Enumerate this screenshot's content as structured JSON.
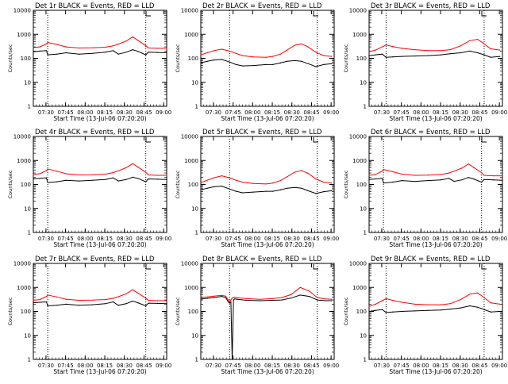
{
  "figure": {
    "background": "#ffffff",
    "colors": {
      "events": "#000000",
      "lld": "#ff0000"
    },
    "y_label": "Counts/sec",
    "x_label": "Start Time (13-Jul-06 07:20:20)",
    "legend_glyph": "L"
  },
  "chart_data": [
    {
      "type": "line",
      "title": "Det 1r BLACK = Events, RED = LLD",
      "xlabel": "Start Time (13-Jul-06 07:20:20)",
      "ylabel": "Counts/sec",
      "y_scale": "log",
      "ylim": [
        1,
        10000
      ],
      "y_ticks": [
        1,
        10,
        100,
        1000,
        10000
      ],
      "x_ticks": [
        "07:30",
        "07:45",
        "08:00",
        "08:15",
        "08:30",
        "08:45",
        "09:00"
      ],
      "xlim_min": [
        0,
        102
      ],
      "vlines_min": [
        11,
        86
      ],
      "grid": false,
      "x": [
        0,
        5,
        10,
        11,
        18,
        25,
        35,
        45,
        55,
        61,
        65,
        71,
        76,
        80,
        86,
        88,
        95,
        102
      ],
      "series": [
        {
          "name": "Events",
          "values": [
            190,
            200,
            210,
            140,
            150,
            170,
            150,
            160,
            180,
            210,
            150,
            180,
            230,
            195,
            140,
            180,
            175,
            170
          ]
        },
        {
          "name": "LLD",
          "values": [
            280,
            300,
            400,
            460,
            380,
            300,
            270,
            275,
            290,
            330,
            390,
            520,
            780,
            560,
            340,
            270,
            260,
            260
          ]
        }
      ]
    },
    {
      "type": "line",
      "title": "Det 2r BLACK = Events, RED = LLD",
      "xlabel": "Start Time (13-Jul-06 07:20:20)",
      "ylabel": "Counts/sec",
      "y_scale": "log",
      "ylim": [
        1,
        10000
      ],
      "y_ticks": [
        1,
        10,
        100,
        1000,
        10000
      ],
      "x_ticks": [
        "07:30",
        "07:45",
        "08:00",
        "08:15",
        "08:30",
        "08:45",
        "09:00"
      ],
      "xlim_min": [
        0,
        102
      ],
      "vlines_min": [
        22,
        89
      ],
      "grid": false,
      "x": [
        0,
        5,
        10,
        16,
        22,
        27,
        32,
        40,
        50,
        55,
        61,
        66,
        72,
        77,
        82,
        88,
        94,
        100
      ],
      "series": [
        {
          "name": "Events",
          "values": [
            65,
            75,
            85,
            90,
            70,
            55,
            48,
            50,
            55,
            55,
            65,
            75,
            80,
            75,
            60,
            45,
            55,
            60
          ]
        },
        {
          "name": "LLD",
          "values": [
            140,
            170,
            210,
            240,
            200,
            160,
            130,
            115,
            110,
            120,
            150,
            220,
            350,
            400,
            300,
            180,
            130,
            120
          ]
        }
      ]
    },
    {
      "type": "line",
      "title": "Det 3r BLACK = Events, RED = LLD",
      "xlabel": "Start Time (13-Jul-06 07:20:20)",
      "ylabel": "Counts/sec",
      "y_scale": "log",
      "ylim": [
        1,
        10000
      ],
      "y_ticks": [
        1,
        10,
        100,
        1000,
        10000
      ],
      "x_ticks": [
        "07:30",
        "07:45",
        "08:00",
        "08:15",
        "08:30",
        "08:45",
        "09:00"
      ],
      "xlim_min": [
        0,
        102
      ],
      "vlines_min": [
        13,
        88
      ],
      "grid": false,
      "x": [
        0,
        5,
        10,
        13,
        18,
        25,
        35,
        45,
        55,
        62,
        70,
        77,
        83,
        88,
        93,
        100
      ],
      "series": [
        {
          "name": "Events",
          "values": [
            130,
            140,
            150,
            110,
            115,
            120,
            125,
            130,
            140,
            155,
            170,
            200,
            170,
            140,
            110,
            120
          ]
        },
        {
          "name": "LLD",
          "values": [
            190,
            220,
            300,
            360,
            310,
            260,
            230,
            210,
            210,
            230,
            330,
            540,
            620,
            400,
            250,
            220
          ]
        }
      ]
    },
    {
      "type": "line",
      "title": "Det 4r BLACK = Events, RED = LLD",
      "xlabel": "Start Time (13-Jul-06 07:20:20)",
      "ylabel": "Counts/sec",
      "y_scale": "log",
      "ylim": [
        1,
        10000
      ],
      "y_ticks": [
        1,
        10,
        100,
        1000,
        10000
      ],
      "x_ticks": [
        "07:30",
        "07:45",
        "08:00",
        "08:15",
        "08:30",
        "08:45",
        "09:00"
      ],
      "xlim_min": [
        0,
        102
      ],
      "vlines_min": [
        11,
        86
      ],
      "grid": false,
      "x": [
        0,
        5,
        10,
        11,
        18,
        25,
        35,
        45,
        55,
        61,
        65,
        71,
        76,
        80,
        86,
        88,
        95,
        102
      ],
      "series": [
        {
          "name": "Events",
          "values": [
            170,
            180,
            190,
            120,
            130,
            150,
            140,
            150,
            160,
            190,
            140,
            160,
            200,
            180,
            130,
            170,
            165,
            160
          ]
        },
        {
          "name": "LLD",
          "values": [
            260,
            280,
            380,
            440,
            360,
            280,
            250,
            255,
            270,
            310,
            370,
            500,
            740,
            530,
            320,
            250,
            240,
            240
          ]
        }
      ]
    },
    {
      "type": "line",
      "title": "Det 5r BLACK = Events, RED = LLD",
      "xlabel": "Start Time (13-Jul-06 07:20:20)",
      "ylabel": "Counts/sec",
      "y_scale": "log",
      "ylim": [
        1,
        10000
      ],
      "y_ticks": [
        1,
        10,
        100,
        1000,
        10000
      ],
      "x_ticks": [
        "07:30",
        "07:45",
        "08:00",
        "08:15",
        "08:30",
        "08:45",
        "09:00"
      ],
      "xlim_min": [
        0,
        102
      ],
      "vlines_min": [
        22,
        89
      ],
      "grid": false,
      "x": [
        0,
        5,
        10,
        16,
        22,
        27,
        32,
        40,
        50,
        55,
        61,
        66,
        72,
        77,
        82,
        88,
        94,
        100
      ],
      "series": [
        {
          "name": "Events",
          "values": [
            60,
            70,
            80,
            85,
            65,
            52,
            45,
            48,
            52,
            52,
            60,
            70,
            75,
            70,
            55,
            42,
            50,
            55
          ]
        },
        {
          "name": "LLD",
          "values": [
            120,
            150,
            190,
            230,
            190,
            150,
            125,
            110,
            105,
            115,
            145,
            210,
            330,
            380,
            290,
            170,
            125,
            115
          ]
        }
      ]
    },
    {
      "type": "line",
      "title": "Det 6r BLACK = Events, RED = LLD",
      "xlabel": "Start Time (13-Jul-06 07:20:20)",
      "ylabel": "Counts/sec",
      "y_scale": "log",
      "ylim": [
        1,
        10000
      ],
      "y_ticks": [
        1,
        10,
        100,
        1000,
        10000
      ],
      "x_ticks": [
        "07:30",
        "07:45",
        "08:00",
        "08:15",
        "08:30",
        "08:45",
        "09:00"
      ],
      "xlim_min": [
        0,
        102
      ],
      "vlines_min": [
        11,
        86
      ],
      "grid": false,
      "x": [
        0,
        5,
        10,
        11,
        18,
        25,
        35,
        45,
        55,
        61,
        65,
        71,
        76,
        80,
        86,
        88,
        95,
        102
      ],
      "series": [
        {
          "name": "Events",
          "values": [
            160,
            170,
            180,
            115,
            125,
            145,
            135,
            145,
            155,
            180,
            135,
            155,
            195,
            170,
            125,
            160,
            155,
            150
          ]
        },
        {
          "name": "LLD",
          "values": [
            240,
            260,
            360,
            420,
            340,
            270,
            240,
            245,
            260,
            300,
            360,
            480,
            720,
            510,
            310,
            240,
            230,
            230
          ]
        }
      ]
    },
    {
      "type": "line",
      "title": "Det 7r BLACK = Events, RED = LLD",
      "xlabel": "Start Time (13-Jul-06 07:20:20)",
      "ylabel": "Counts/sec",
      "y_scale": "log",
      "ylim": [
        1,
        10000
      ],
      "y_ticks": [
        1,
        10,
        100,
        1000,
        10000
      ],
      "x_ticks": [
        "07:30",
        "07:45",
        "08:00",
        "08:15",
        "08:30",
        "08:45",
        "09:00"
      ],
      "xlim_min": [
        0,
        102
      ],
      "vlines_min": [
        11,
        86
      ],
      "grid": false,
      "x": [
        0,
        5,
        10,
        11,
        18,
        25,
        35,
        45,
        55,
        61,
        65,
        71,
        76,
        80,
        86,
        88,
        95,
        102
      ],
      "series": [
        {
          "name": "Events",
          "values": [
            230,
            240,
            250,
            170,
            180,
            200,
            180,
            190,
            210,
            250,
            180,
            210,
            270,
            230,
            170,
            220,
            215,
            210
          ]
        },
        {
          "name": "LLD",
          "values": [
            290,
            310,
            420,
            480,
            400,
            320,
            290,
            295,
            310,
            350,
            410,
            540,
            800,
            580,
            360,
            290,
            280,
            280
          ]
        }
      ]
    },
    {
      "type": "line",
      "title": "Det 8r BLACK = Events, RED = LLD",
      "xlabel": "Start Time (13-Jul-06 07:20:20)",
      "ylabel": "Counts/sec",
      "y_scale": "log",
      "ylim": [
        1,
        10000
      ],
      "y_ticks": [
        1,
        10,
        100,
        1000,
        10000
      ],
      "x_ticks": [
        "07:30",
        "07:45",
        "08:00",
        "08:15",
        "08:30",
        "08:45",
        "09:00"
      ],
      "xlim_min": [
        0,
        102
      ],
      "vlines_min": [
        22,
        89
      ],
      "grid": false,
      "x": [
        0,
        5,
        10,
        16,
        19,
        21,
        22,
        23,
        24,
        25,
        26,
        28,
        35,
        45,
        55,
        62,
        69,
        76,
        83,
        89,
        95,
        100
      ],
      "series": [
        {
          "name": "Events",
          "values": [
            330,
            350,
            380,
            420,
            380,
            250,
            220,
            250,
            0.9,
            300,
            330,
            320,
            290,
            280,
            290,
            300,
            360,
            480,
            420,
            300,
            280,
            280
          ]
        },
        {
          "name": "LLD",
          "values": [
            380,
            400,
            430,
            470,
            430,
            300,
            260,
            300,
            360,
            380,
            390,
            370,
            340,
            320,
            340,
            380,
            500,
            1000,
            700,
            380,
            330,
            320
          ]
        }
      ]
    },
    {
      "type": "line",
      "title": "Det 9r BLACK = Events, RED = LLD",
      "xlabel": "Start Time (13-Jul-06 07:20:20)",
      "ylabel": "Counts/sec",
      "y_scale": "log",
      "ylim": [
        1,
        10000
      ],
      "y_ticks": [
        1,
        10,
        100,
        1000,
        10000
      ],
      "x_ticks": [
        "07:30",
        "07:45",
        "08:00",
        "08:15",
        "08:30",
        "08:45",
        "09:00"
      ],
      "xlim_min": [
        0,
        102
      ],
      "vlines_min": [
        13,
        88
      ],
      "grid": false,
      "x": [
        0,
        5,
        10,
        13,
        18,
        25,
        35,
        45,
        55,
        62,
        70,
        77,
        83,
        88,
        93,
        100
      ],
      "series": [
        {
          "name": "Events",
          "values": [
            100,
            110,
            120,
            90,
            95,
            100,
            105,
            110,
            115,
            125,
            140,
            170,
            150,
            120,
            95,
            100
          ]
        },
        {
          "name": "LLD",
          "values": [
            160,
            200,
            280,
            340,
            290,
            240,
            200,
            190,
            190,
            210,
            310,
            520,
            590,
            380,
            230,
            200
          ]
        }
      ]
    }
  ]
}
